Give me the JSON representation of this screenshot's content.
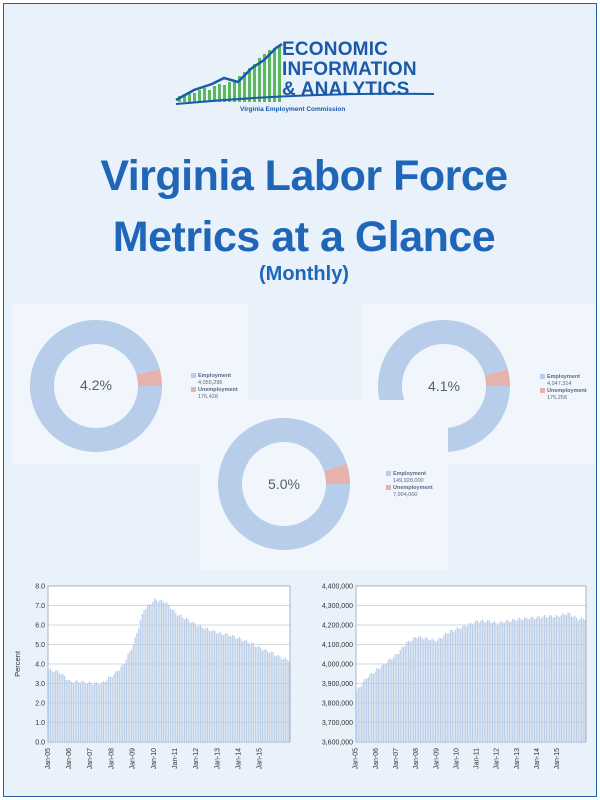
{
  "logo": {
    "line1": "ECONOMIC",
    "line2": "INFORMATION",
    "line3": "& ANALYTICS",
    "sub": "Virginia Employment Commission",
    "colors": {
      "blue": "#1b5aa8",
      "green": "#5cb85c"
    }
  },
  "title": {
    "line1": "Virginia Labor Force",
    "line2": "Metrics at a Glance",
    "sub": "(Monthly)"
  },
  "donuts": [
    {
      "center": "4.2%",
      "employment_label": "Employment",
      "employment_value": "4,055,296",
      "unemployment_label": "Unemployment",
      "unemployment_value": "176,428",
      "unemployment_share": 0.042
    },
    {
      "center": "5.0%",
      "employment_label": "Employment",
      "employment_value": "149,928,000",
      "unemployment_label": "Unemployment",
      "unemployment_value": "7,904,000",
      "unemployment_share": 0.05
    },
    {
      "center": "4.1%",
      "employment_label": "Employment",
      "employment_value": "4,047,314",
      "unemployment_label": "Unemployment",
      "unemployment_value": "175,258",
      "unemployment_share": 0.041
    }
  ],
  "chart_data": [
    {
      "type": "bar",
      "ylabel": "Percent",
      "ylim": [
        0,
        8
      ],
      "yticks": [
        "0.0",
        "1.0",
        "2.0",
        "3.0",
        "4.0",
        "5.0",
        "6.0",
        "7.0",
        "8.0"
      ],
      "xticks": [
        "Jan-05",
        "Jan-06",
        "Jan-07",
        "Jan-08",
        "Jan-09",
        "Jan-10",
        "Jan-11",
        "Jan-12",
        "Jan-13",
        "Jan-14",
        "Jan-15"
      ],
      "anchors": [
        [
          0,
          3.7
        ],
        [
          6,
          3.6
        ],
        [
          12,
          3.1
        ],
        [
          18,
          3.1
        ],
        [
          24,
          3.0
        ],
        [
          30,
          3.0
        ],
        [
          36,
          3.4
        ],
        [
          42,
          3.9
        ],
        [
          48,
          5.0
        ],
        [
          54,
          6.8
        ],
        [
          60,
          7.3
        ],
        [
          66,
          7.2
        ],
        [
          72,
          6.6
        ],
        [
          78,
          6.3
        ],
        [
          84,
          6.0
        ],
        [
          90,
          5.8
        ],
        [
          96,
          5.6
        ],
        [
          102,
          5.5
        ],
        [
          108,
          5.3
        ],
        [
          114,
          5.1
        ],
        [
          120,
          4.8
        ],
        [
          126,
          4.6
        ],
        [
          132,
          4.3
        ],
        [
          136,
          4.2
        ]
      ],
      "grid": true
    },
    {
      "type": "bar",
      "ylabel": "",
      "ylim": [
        3600000,
        4400000
      ],
      "yticks": [
        "3,600,000",
        "3,700,000",
        "3,800,000",
        "3,900,000",
        "4,000,000",
        "4,100,000",
        "4,200,000",
        "4,300,000",
        "4,400,000"
      ],
      "xticks": [
        "Jan-05",
        "Jan-06",
        "Jan-07",
        "Jan-08",
        "Jan-09",
        "Jan-10",
        "Jan-11",
        "Jan-12",
        "Jan-13",
        "Jan-14",
        "Jan-15"
      ],
      "anchors": [
        [
          0,
          3860000
        ],
        [
          6,
          3930000
        ],
        [
          12,
          3970000
        ],
        [
          18,
          4010000
        ],
        [
          24,
          4050000
        ],
        [
          30,
          4110000
        ],
        [
          36,
          4140000
        ],
        [
          42,
          4130000
        ],
        [
          48,
          4120000
        ],
        [
          54,
          4160000
        ],
        [
          60,
          4180000
        ],
        [
          66,
          4200000
        ],
        [
          72,
          4220000
        ],
        [
          78,
          4220000
        ],
        [
          84,
          4210000
        ],
        [
          90,
          4220000
        ],
        [
          96,
          4230000
        ],
        [
          102,
          4235000
        ],
        [
          108,
          4240000
        ],
        [
          114,
          4245000
        ],
        [
          120,
          4245000
        ],
        [
          126,
          4260000
        ],
        [
          132,
          4230000
        ],
        [
          136,
          4235000
        ]
      ],
      "grid": true
    }
  ],
  "colors": {
    "title": "#1f66b8",
    "bar": "#b9cde6",
    "donut_emp": "#b7cde9",
    "donut_unemp": "#e6b2ad"
  }
}
